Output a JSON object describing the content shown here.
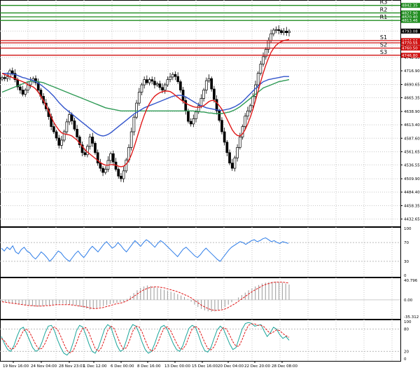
{
  "chart_data": {
    "type": "candlestick",
    "price_axis": {
      "ylim": [
        4420,
        4850
      ],
      "ticks": [
        "4793.08",
        "4766.60",
        "4742.35",
        "4716.90",
        "4690.65",
        "4665.35",
        "4638.90",
        "4613.40",
        "4587.60",
        "4561.65",
        "4536.55",
        "4509.90",
        "4484.40",
        "4458.35",
        "4432.65"
      ]
    },
    "time_axis": {
      "labels": [
        "19 Nov 16:00",
        "24 Nov 04:00",
        "28 Nov 23:01",
        "1 Dec 12:00",
        "6 Dec 00:00",
        "8 Dec 16:00",
        "13 Dec 00:00",
        "15 Dec 16:00",
        "20 Dec 04:00",
        "22 Dec 20:00",
        "28 Dec 08:00"
      ]
    },
    "levels": [
      {
        "name": "R3",
        "value": 4842.35,
        "tag": "4842.35",
        "color": "#1f8c1f"
      },
      {
        "name": "R2",
        "value": 4827.9,
        "tag": "4827.90",
        "color": "#1f8c1f"
      },
      {
        "name": "",
        "value": 4820.4,
        "tag": "4820.40",
        "color": "#1f8c1f"
      },
      {
        "name": "R1",
        "value": 4813.46,
        "tag": "4813.46",
        "color": "#1f8c1f"
      },
      {
        "name": "S1",
        "value": 4774.94,
        "tag": "4774.94",
        "color": "#d01010"
      },
      {
        "name": "",
        "value": 4770.55,
        "tag": "4770.55",
        "color": "#d01010"
      },
      {
        "name": "S2",
        "value": 4760.5,
        "tag": "4760.50",
        "color": "#d01010"
      },
      {
        "name": "S3",
        "value": 4746.8,
        "tag": "4746.80",
        "color": "#d01010"
      }
    ],
    "last_price": {
      "value": 4793.08,
      "tag": "4793.08"
    },
    "price_series": [
      4704,
      4702,
      4706,
      4717,
      4712,
      4700,
      4686,
      4680,
      4672,
      4680,
      4690,
      4697,
      4702,
      4694,
      4680,
      4668,
      4655,
      4644,
      4629,
      4610,
      4600,
      4588,
      4574,
      4584,
      4600,
      4619,
      4633,
      4621,
      4605,
      4590,
      4575,
      4560,
      4556,
      4572,
      4590,
      4578,
      4560,
      4540,
      4530,
      4522,
      4528,
      4545,
      4558,
      4542,
      4528,
      4515,
      4510,
      4525,
      4546,
      4570,
      4600,
      4628,
      4655,
      4676,
      4690,
      4700,
      4694,
      4700,
      4697,
      4690,
      4692,
      4685,
      4680,
      4690,
      4700,
      4705,
      4710,
      4706,
      4696,
      4680,
      4660,
      4640,
      4620,
      4615,
      4625,
      4638,
      4650,
      4664,
      4680,
      4698,
      4702,
      4682,
      4662,
      4640,
      4622,
      4600,
      4580,
      4560,
      4540,
      4530,
      4550,
      4570,
      4590,
      4610,
      4630,
      4640,
      4650,
      4668,
      4690,
      4712,
      4730,
      4744,
      4758,
      4775,
      4788,
      4795,
      4796,
      4794,
      4790,
      4793,
      4790,
      4793
    ],
    "ma_red": [
      4712,
      4710,
      4708,
      4706,
      4704,
      4702,
      4700,
      4698,
      4696,
      4694,
      4690,
      4688,
      4686,
      4682,
      4676,
      4668,
      4660,
      4650,
      4640,
      4628,
      4618,
      4610,
      4603,
      4598,
      4596,
      4595,
      4594,
      4592,
      4588,
      4584,
      4578,
      4572,
      4566,
      4561,
      4557,
      4553,
      4549,
      4545,
      4541,
      4538,
      4536,
      4536,
      4537,
      4537,
      4536,
      4534,
      4533,
      4534,
      4538,
      4545,
      4556,
      4570,
      4586,
      4602,
      4618,
      4632,
      4644,
      4654,
      4662,
      4668,
      4672,
      4675,
      4677,
      4678,
      4678,
      4677,
      4674,
      4670,
      4666,
      4662,
      4658,
      4655,
      4652,
      4650,
      4648,
      4647,
      4647,
      4648,
      4650,
      4654,
      4658,
      4660,
      4660,
      4656,
      4650,
      4643,
      4634,
      4624,
      4614,
      4604,
      4597,
      4593,
      4592,
      4596,
      4604,
      4615,
      4628,
      4643,
      4660,
      4678,
      4696,
      4713,
      4728,
      4741,
      4752,
      4760,
      4766,
      4770,
      4773,
      4775,
      4776,
      4777
    ],
    "ma_blue": [
      4712,
      4712,
      4712,
      4711,
      4711,
      4710,
      4708,
      4706,
      4704,
      4703,
      4701,
      4700,
      4698,
      4696,
      4693,
      4690,
      4686,
      4682,
      4678,
      4673,
      4668,
      4662,
      4656,
      4651,
      4646,
      4642,
      4638,
      4634,
      4630,
      4626,
      4622,
      4618,
      4614,
      4610,
      4606,
      4602,
      4598,
      4595,
      4593,
      4592,
      4593,
      4595,
      4598,
      4602,
      4606,
      4610,
      4614,
      4618,
      4622,
      4626,
      4630,
      4634,
      4637,
      4640,
      4643,
      4646,
      4648,
      4650,
      4652,
      4654,
      4656,
      4658,
      4660,
      4662,
      4664,
      4666,
      4668,
      4669,
      4670,
      4670,
      4669,
      4667,
      4664,
      4661,
      4658,
      4655,
      4652,
      4650,
      4648,
      4646,
      4645,
      4644,
      4643,
      4642,
      4641,
      4641,
      4642,
      4643,
      4644,
      4646,
      4648,
      4651,
      4654,
      4658,
      4663,
      4668,
      4673,
      4678,
      4683,
      4688,
      4692,
      4696,
      4698,
      4700,
      4701,
      4702,
      4703,
      4704,
      4705,
      4706,
      4706,
      4706
    ],
    "ma_green": [
      4676,
      4678,
      4680,
      4682,
      4684,
      4686,
      4688,
      4690,
      4692,
      4694,
      4696,
      4697,
      4697,
      4697,
      4696,
      4695,
      4694,
      4692,
      4690,
      4688,
      4686,
      4684,
      4682,
      4680,
      4678,
      4676,
      4674,
      4672,
      4670,
      4668,
      4666,
      4664,
      4662,
      4660,
      4658,
      4656,
      4654,
      4652,
      4650,
      4648,
      4646,
      4645,
      4644,
      4643,
      4642,
      4641,
      4640,
      4640,
      4640,
      4640,
      4640,
      4640,
      4640,
      4640,
      4640,
      4640,
      4640,
      4640,
      4640,
      4640,
      4640,
      4640,
      4640,
      4640,
      4640,
      4640,
      4640,
      4640,
      4640,
      4640,
      4640,
      4640,
      4640,
      4640,
      4640,
      4639,
      4639,
      4638,
      4638,
      4637,
      4636,
      4636,
      4635,
      4635,
      4635,
      4635,
      4636,
      4637,
      4638,
      4640,
      4642,
      4645,
      4648,
      4652,
      4656,
      4660,
      4664,
      4668,
      4672,
      4676,
      4680,
      4684,
      4686,
      4688,
      4690,
      4692,
      4694,
      4696,
      4697,
      4698,
      4699,
      4700
    ],
    "rsi": {
      "ticks": [
        "100",
        "70",
        "30",
        "0"
      ],
      "values": [
        58,
        52,
        60,
        55,
        63,
        50,
        46,
        55,
        60,
        52,
        48,
        40,
        35,
        42,
        50,
        45,
        38,
        30,
        36,
        44,
        52,
        48,
        40,
        34,
        30,
        38,
        46,
        52,
        44,
        38,
        46,
        55,
        62,
        56,
        50,
        58,
        66,
        72,
        65,
        58,
        62,
        70,
        64,
        56,
        50,
        58,
        66,
        74,
        68,
        62,
        70,
        76,
        72,
        66,
        60,
        68,
        74,
        70,
        64,
        58,
        52,
        46,
        40,
        48,
        56,
        60,
        54,
        48,
        42,
        38,
        44,
        52,
        58,
        52,
        46,
        40,
        34,
        30,
        38,
        46,
        54,
        60,
        64,
        68,
        72,
        70,
        66,
        70,
        74,
        76,
        72,
        74,
        78,
        80,
        76,
        72,
        74,
        70,
        68,
        72,
        70,
        68
      ]
    },
    "macd": {
      "ticks": [
        "40.796",
        "0.00",
        "-35.312"
      ],
      "histogram": [
        -4,
        -5,
        -6,
        -7,
        -8,
        -9,
        -10,
        -11,
        -12,
        -13,
        -14,
        -14,
        -13,
        -12,
        -11,
        -10,
        -9,
        -8,
        -8,
        -9,
        -10,
        -11,
        -12,
        -14,
        -16,
        -18,
        -20,
        -19,
        -17,
        -15,
        -13,
        -11,
        -9,
        -7,
        -6,
        -5,
        -4,
        2,
        8,
        14,
        20,
        25,
        28,
        30,
        29,
        27,
        25,
        23,
        21,
        19,
        17,
        15,
        12,
        9,
        6,
        2,
        -4,
        -10,
        -15,
        -19,
        -22,
        -24,
        -25,
        -24,
        -22,
        -19,
        -15,
        -10,
        -5,
        0,
        5,
        10,
        15,
        20,
        24,
        28,
        31,
        34,
        36,
        37,
        38,
        38,
        37,
        36,
        34,
        32
      ],
      "signal": [
        -4,
        -5,
        -6,
        -7,
        -8,
        -9,
        -10,
        -11,
        -12,
        -12,
        -13,
        -13,
        -13,
        -12,
        -12,
        -11,
        -10,
        -10,
        -10,
        -10,
        -10,
        -11,
        -12,
        -13,
        -14,
        -15,
        -17,
        -18,
        -18,
        -17,
        -16,
        -14,
        -12,
        -10,
        -8,
        -7,
        -5,
        -2,
        2,
        7,
        12,
        17,
        21,
        24,
        26,
        27,
        27,
        26,
        25,
        23,
        21,
        19,
        17,
        14,
        11,
        8,
        4,
        -1,
        -6,
        -11,
        -15,
        -18,
        -21,
        -22,
        -22,
        -21,
        -19,
        -16,
        -12,
        -8,
        -3,
        2,
        7,
        12,
        17,
        21,
        25,
        29,
        32,
        34,
        36,
        37,
        37,
        37,
        36,
        35
      ]
    },
    "stoch": {
      "ticks": [
        "100",
        "80",
        "20",
        "0"
      ],
      "k": [
        60,
        40,
        25,
        20,
        35,
        60,
        80,
        85,
        70,
        50,
        30,
        20,
        25,
        45,
        70,
        88,
        90,
        75,
        50,
        30,
        15,
        10,
        20,
        45,
        75,
        90,
        85,
        65,
        40,
        20,
        15,
        30,
        55,
        80,
        92,
        85,
        60,
        35,
        20,
        25,
        50,
        78,
        92,
        88,
        70,
        45,
        25,
        15,
        20,
        40,
        65,
        85,
        90,
        80,
        60,
        40,
        25,
        20,
        35,
        60,
        82,
        90,
        85,
        65,
        40,
        22,
        18,
        30,
        55,
        78,
        88,
        80,
        60,
        40,
        25,
        30,
        55,
        80,
        95,
        98,
        95,
        88,
        90,
        92,
        75,
        60,
        70,
        85,
        80,
        65,
        55,
        60,
        50
      ],
      "d": [
        55,
        48,
        35,
        26,
        28,
        40,
        58,
        75,
        80,
        72,
        55,
        38,
        26,
        28,
        42,
        62,
        80,
        86,
        78,
        60,
        40,
        22,
        16,
        22,
        42,
        66,
        82,
        84,
        70,
        48,
        28,
        20,
        30,
        52,
        76,
        88,
        82,
        62,
        40,
        26,
        30,
        50,
        74,
        88,
        86,
        72,
        50,
        30,
        20,
        26,
        42,
        64,
        82,
        86,
        78,
        60,
        42,
        28,
        26,
        38,
        60,
        80,
        88,
        82,
        64,
        44,
        28,
        24,
        32,
        52,
        74,
        84,
        80,
        64,
        46,
        34,
        34,
        52,
        74,
        90,
        94,
        94,
        90,
        90,
        86,
        76,
        68,
        72,
        78,
        76,
        68,
        62,
        58
      ]
    }
  }
}
